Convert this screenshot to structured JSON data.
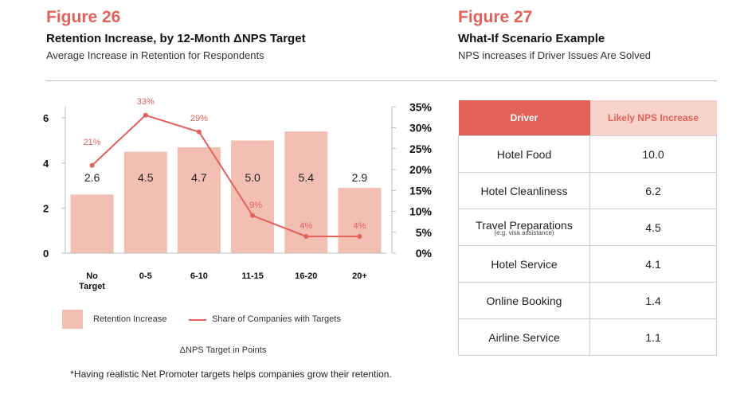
{
  "figure26": {
    "label": "Figure 26",
    "title": "Retention Increase, by 12-Month ΔNPS Target",
    "subtitle": "Average Increase in Retention for Respondents"
  },
  "figure27": {
    "label": "Figure 27",
    "title": "What-If Scenario Example",
    "subtitle": "NPS increases if Driver Issues Are Solved"
  },
  "chart_data": {
    "type": "bar",
    "categories": [
      "No Target",
      "0-5",
      "6-10",
      "11-15",
      "16-20",
      "20+"
    ],
    "category_lines": [
      [
        "No",
        "Target"
      ],
      [
        "0-5"
      ],
      [
        "6-10"
      ],
      [
        "11-15"
      ],
      [
        "16-20"
      ],
      [
        "20+"
      ]
    ],
    "series": [
      {
        "name": "Retention Increase",
        "kind": "bar",
        "axis": "left",
        "values": [
          2.6,
          4.5,
          4.7,
          5.0,
          5.4,
          2.9
        ],
        "labels": [
          "2.6",
          "4.5",
          "4.7",
          "5.0",
          "5.4",
          "2.9"
        ]
      },
      {
        "name": "Share of Companies with Targets",
        "kind": "line",
        "axis": "right",
        "values": [
          21,
          33,
          29,
          9,
          4,
          4
        ],
        "labels": [
          "21%",
          "33%",
          "29%",
          "9%",
          "4%",
          "4%"
        ]
      }
    ],
    "left_axis": {
      "ticks": [
        0,
        2,
        4,
        6
      ],
      "tick_labels": [
        "0",
        "2",
        "4",
        "6"
      ],
      "range": [
        0,
        6.5
      ]
    },
    "right_axis": {
      "ticks": [
        0,
        5,
        10,
        15,
        20,
        25,
        30,
        35
      ],
      "tick_labels": [
        "0%",
        "5%",
        "10%",
        "15%",
        "20%",
        "25%",
        "30%",
        "35%"
      ],
      "range": [
        0,
        35
      ]
    },
    "xlabel": "ΔNPS Target in Points",
    "colors": {
      "bar": "#f3bfb3",
      "line": "#e2625a",
      "axis": "#bdbdbd"
    }
  },
  "legend": {
    "bar_label": "Retention Increase",
    "line_label": "Share of Companies with Targets"
  },
  "footnote": "*Having realistic Net Promoter targets helps companies grow their retention.",
  "table": {
    "headers": [
      "Driver",
      "Likely NPS Increase"
    ],
    "rows": [
      {
        "driver": "Hotel Food",
        "note": "",
        "value": "10.0"
      },
      {
        "driver": "Hotel Cleanliness",
        "note": "",
        "value": "6.2"
      },
      {
        "driver": "Travel Preparations",
        "note": "(e.g. visa assistance)",
        "value": "4.5"
      },
      {
        "driver": "Hotel Service",
        "note": "",
        "value": "4.1"
      },
      {
        "driver": "Online Booking",
        "note": "",
        "value": "1.4"
      },
      {
        "driver": "Airline Service",
        "note": "",
        "value": "1.1"
      }
    ]
  }
}
